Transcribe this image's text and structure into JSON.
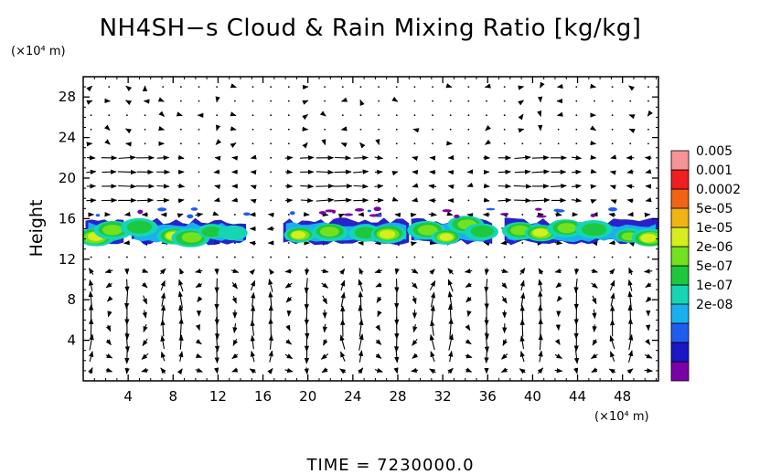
{
  "chart_data": {
    "type": "heatmap",
    "title": "NH4SH−s Cloud & Rain Mixing Ratio [kg/kg]",
    "ylabel": "Height",
    "x_unit": "(×10⁴ m)",
    "y_unit": "(×10⁴ m)",
    "xlim": [
      0,
      51.2
    ],
    "ylim": [
      0,
      30
    ],
    "x_ticks": [
      4,
      8,
      12,
      16,
      20,
      24,
      28,
      32,
      36,
      40,
      44,
      48
    ],
    "y_ticks": [
      4,
      8,
      12,
      16,
      20,
      24,
      28
    ],
    "colorbar": {
      "labels": [
        "0.005",
        "0.001",
        "0.0002",
        "5e-05",
        "1e-05",
        "2e-06",
        "5e-07",
        "1e-07",
        "2e-08"
      ],
      "colors": [
        "#7a00a8",
        "#1b16c6",
        "#1f5cf0",
        "#1ab0f0",
        "#14d6b4",
        "#1ec83c",
        "#74e11e",
        "#d6ee1e",
        "#f0b414",
        "#f06414",
        "#f01e1e",
        "#f59496"
      ],
      "placement": "right"
    },
    "cloud_layer": {
      "y_range": [
        13.2,
        16.4
      ],
      "segments": [
        [
          0.2,
          3.6
        ],
        [
          4.3,
          14.5
        ],
        [
          17.8,
          29.0
        ],
        [
          29.2,
          36.4
        ],
        [
          37.5,
          51.2
        ]
      ],
      "blobs": [
        {
          "x": 1.1,
          "y": 14.2,
          "level": 7
        },
        {
          "x": 2.6,
          "y": 14.9,
          "level": 6
        },
        {
          "x": 5.0,
          "y": 15.2,
          "level": 5
        },
        {
          "x": 8.1,
          "y": 14.3,
          "level": 7
        },
        {
          "x": 9.6,
          "y": 14.1,
          "level": 6
        },
        {
          "x": 11.4,
          "y": 14.7,
          "level": 5
        },
        {
          "x": 13.3,
          "y": 14.6,
          "level": 4
        },
        {
          "x": 19.2,
          "y": 14.4,
          "level": 7
        },
        {
          "x": 21.9,
          "y": 14.7,
          "level": 6
        },
        {
          "x": 25.2,
          "y": 14.6,
          "level": 5
        },
        {
          "x": 27.1,
          "y": 14.5,
          "level": 7
        },
        {
          "x": 30.6,
          "y": 14.9,
          "level": 6
        },
        {
          "x": 32.3,
          "y": 14.2,
          "level": 7
        },
        {
          "x": 34.1,
          "y": 15.4,
          "level": 6
        },
        {
          "x": 35.5,
          "y": 14.7,
          "level": 5
        },
        {
          "x": 38.9,
          "y": 14.8,
          "level": 6
        },
        {
          "x": 40.7,
          "y": 14.6,
          "level": 7
        },
        {
          "x": 43.0,
          "y": 15.1,
          "level": 6
        },
        {
          "x": 45.5,
          "y": 14.9,
          "level": 5
        },
        {
          "x": 48.6,
          "y": 14.3,
          "level": 6
        },
        {
          "x": 50.4,
          "y": 14.1,
          "level": 7
        }
      ]
    },
    "wind_vectors": "arrows on a regular grid; strong horizontal arrows near 19-20, convective circulation cells below 12"
  },
  "footer": {
    "time_label": "TIME  =  7230000.0"
  }
}
